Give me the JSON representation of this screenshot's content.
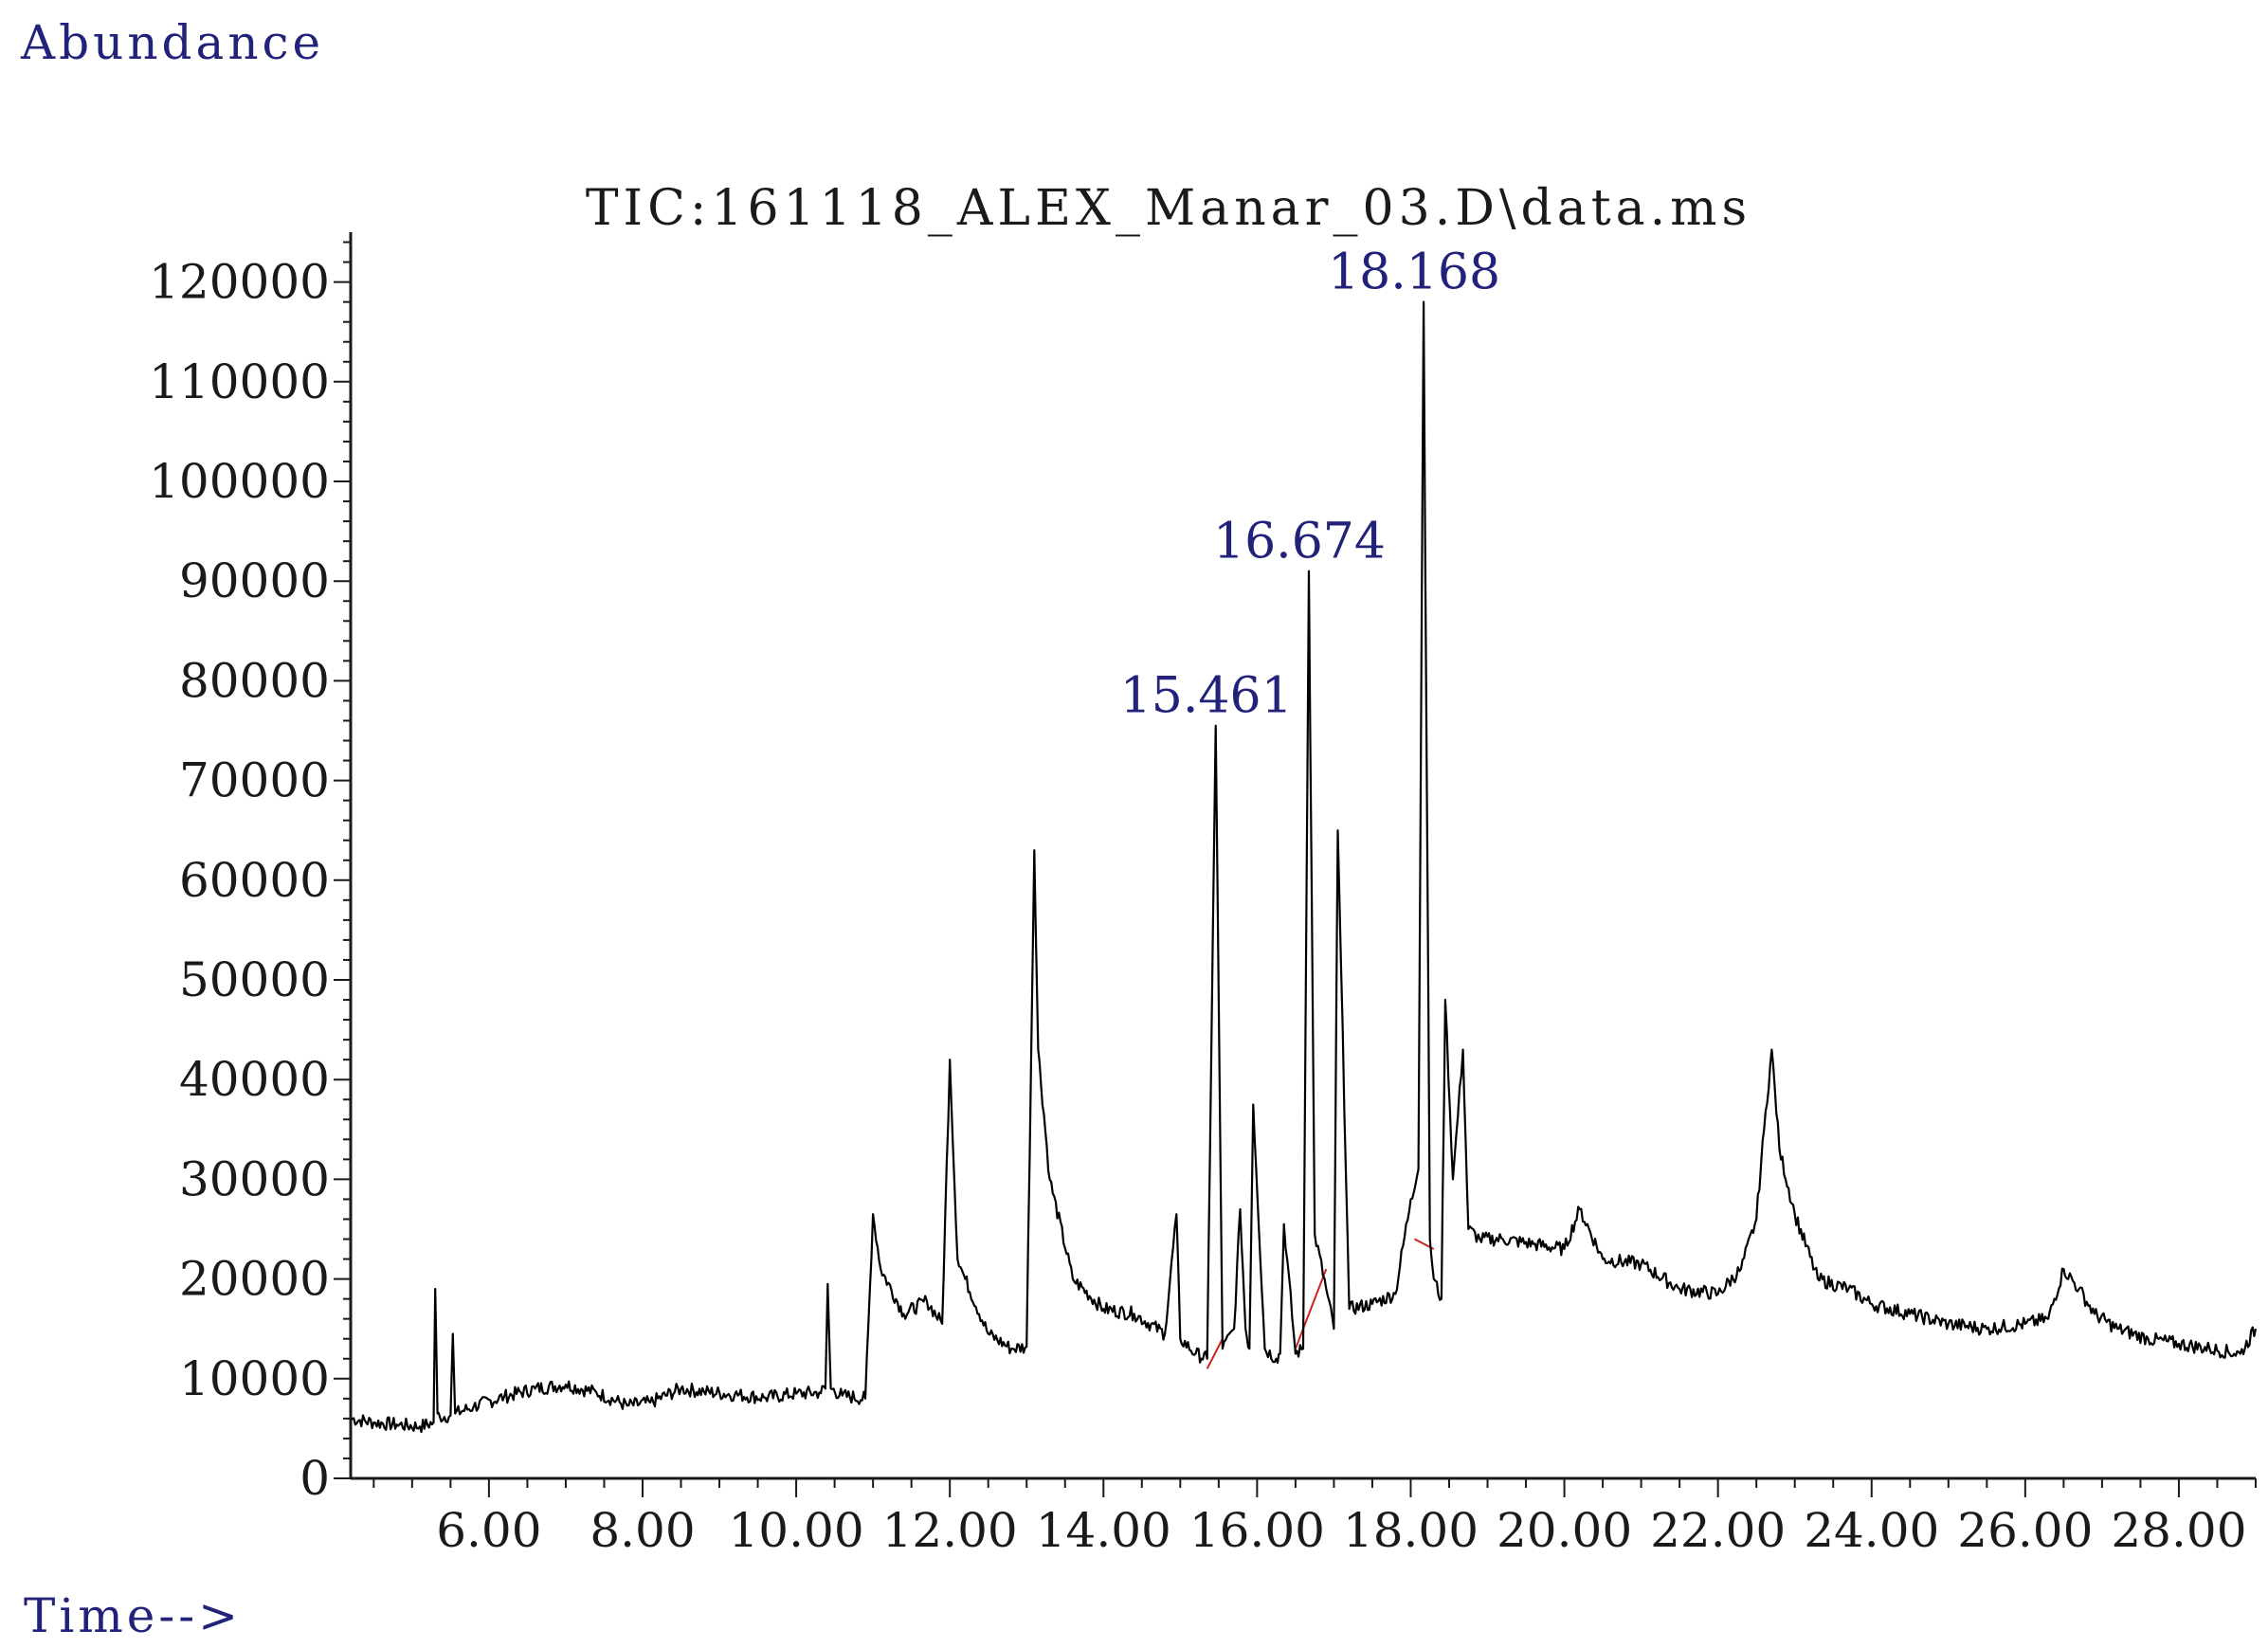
{
  "chart_data": {
    "type": "line",
    "title": "TIC:161118_ALEX_Manar_03.D\\data.ms",
    "ylabel": "Abundance",
    "xlabel": "Time-->",
    "xlim": [
      4.2,
      29.0
    ],
    "ylim": [
      0,
      125000
    ],
    "x_ticks": [
      "6.00",
      "8.00",
      "10.00",
      "12.00",
      "14.00",
      "16.00",
      "18.00",
      "20.00",
      "22.00",
      "24.00",
      "26.00",
      "28.00"
    ],
    "y_ticks": [
      "0",
      "10000",
      "20000",
      "30000",
      "40000",
      "50000",
      "60000",
      "70000",
      "80000",
      "90000",
      "100000",
      "110000",
      "120000"
    ],
    "peak_labels": [
      {
        "text": "15.461",
        "x": 15.461,
        "y": 75500
      },
      {
        "text": "16.674",
        "x": 16.674,
        "y": 91000
      },
      {
        "text": "18.168",
        "x": 18.168,
        "y": 118000
      }
    ],
    "series": [
      {
        "color": "#000000",
        "x": [
          4.2,
          4.5,
          4.8,
          5.1,
          5.28,
          5.3,
          5.33,
          5.36,
          5.5,
          5.53,
          5.56,
          5.8,
          6.2,
          6.6,
          7.0,
          7.4,
          7.8,
          8.1,
          8.5,
          8.8,
          9.2,
          9.6,
          10.0,
          10.3,
          10.38,
          10.41,
          10.45,
          10.6,
          10.9,
          11.0,
          11.1,
          11.4,
          11.7,
          11.9,
          12.0,
          12.1,
          12.2,
          12.5,
          12.8,
          13.0,
          13.1,
          13.15,
          13.3,
          13.6,
          14.0,
          14.4,
          14.8,
          14.95,
          15.0,
          15.2,
          15.35,
          15.461,
          15.55,
          15.7,
          15.78,
          15.85,
          15.9,
          15.95,
          16.1,
          16.25,
          16.3,
          16.35,
          16.5,
          16.6,
          16.674,
          16.75,
          16.9,
          17.0,
          17.05,
          17.2,
          17.5,
          17.8,
          18.0,
          18.1,
          18.168,
          18.25,
          18.3,
          18.4,
          18.45,
          18.55,
          18.68,
          18.75,
          18.9,
          19.2,
          19.6,
          20.0,
          20.2,
          20.5,
          21.0,
          21.5,
          22.0,
          22.3,
          22.5,
          22.6,
          22.7,
          22.8,
          23.0,
          23.3,
          23.7,
          24.0,
          24.5,
          25.0,
          25.5,
          26.0,
          26.3,
          26.5,
          26.7,
          26.9,
          27.2,
          27.6,
          28.0,
          28.4,
          28.8,
          29.0
        ],
        "values": [
          6000,
          5600,
          5400,
          5200,
          5600,
          19000,
          6500,
          6200,
          6300,
          14500,
          6500,
          7200,
          8200,
          9000,
          9400,
          8600,
          7300,
          7600,
          9000,
          8700,
          8400,
          8100,
          8500,
          8600,
          9000,
          19500,
          9000,
          8300,
          8000,
          26500,
          21000,
          16500,
          17800,
          15500,
          42000,
          22000,
          20000,
          14500,
          13000,
          13200,
          63000,
          43000,
          30000,
          20000,
          17000,
          16500,
          14500,
          26500,
          14000,
          12500,
          12000,
          75500,
          13000,
          15000,
          27000,
          15000,
          13000,
          37500,
          13000,
          12000,
          12500,
          25500,
          12500,
          13000,
          91000,
          24500,
          19000,
          15000,
          65000,
          17000,
          17500,
          18500,
          28000,
          31000,
          118000,
          24000,
          20000,
          18000,
          48000,
          30000,
          43000,
          25000,
          24000,
          24000,
          23500,
          23000,
          27000,
          22000,
          21500,
          19000,
          18500,
          21000,
          26000,
          35000,
          43000,
          33000,
          26500,
          20000,
          19000,
          17500,
          16500,
          15500,
          15000,
          15500,
          16000,
          21000,
          19000,
          16500,
          15000,
          14000,
          13500,
          13000,
          12500,
          15000
        ]
      }
    ],
    "baseline_segments": [
      {
        "color": "#cc2222",
        "x": [
          15.35,
          15.55
        ],
        "values": [
          11000,
          14000
        ]
      },
      {
        "color": "#cc2222",
        "x": [
          16.5,
          16.9
        ],
        "values": [
          13000,
          21000
        ]
      },
      {
        "color": "#cc2222",
        "x": [
          18.05,
          18.3
        ],
        "values": [
          24000,
          23000
        ]
      }
    ]
  }
}
